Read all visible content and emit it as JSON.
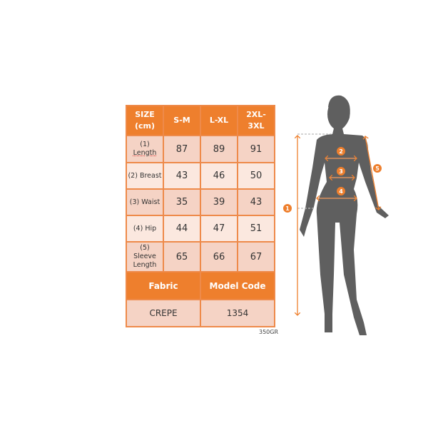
{
  "table": {
    "header": [
      "SIZE (cm)",
      "S-M",
      "L-XL",
      "2XL-3XL"
    ],
    "rows": [
      {
        "num": "(1)",
        "label": "Length",
        "values": [
          "87",
          "89",
          "91"
        ]
      },
      {
        "label": "(2) Breast",
        "values": [
          "43",
          "46",
          "50"
        ]
      },
      {
        "label": "(3) Waist",
        "values": [
          "35",
          "39",
          "43"
        ]
      },
      {
        "label": "(4) Hip",
        "values": [
          "44",
          "47",
          "51"
        ]
      },
      {
        "num": "(5)",
        "label": "Sleeve Length",
        "values": [
          "65",
          "66",
          "67"
        ]
      }
    ],
    "fabric_label": "Fabric",
    "model_code_label": "Model Code",
    "fabric": "CREPE",
    "model_code": "1354"
  },
  "weight": "350GR",
  "figure": {
    "markers": [
      "1",
      "2",
      "3",
      "4",
      "5"
    ],
    "accent_color": "#ee7f2d",
    "silhouette_color": "#5f5f5f"
  }
}
